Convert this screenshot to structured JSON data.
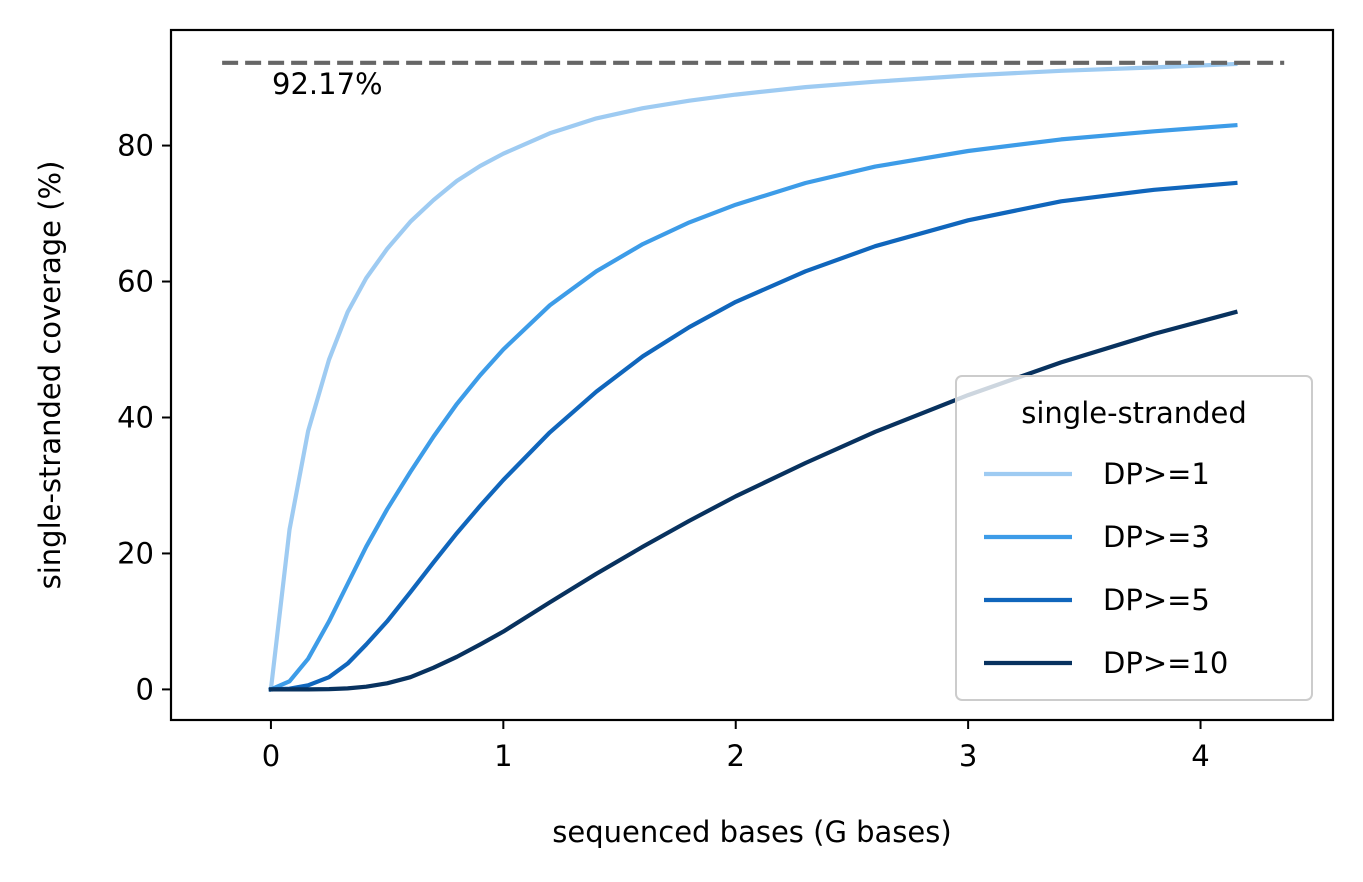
{
  "chart_data": {
    "type": "line",
    "xlabel": "sequenced bases (G bases)",
    "ylabel": "single-stranded coverage (%)",
    "xlim": [
      -0.43,
      4.57
    ],
    "ylim": [
      -4.5,
      97.0
    ],
    "xticks": [
      0,
      1,
      2,
      3,
      4
    ],
    "xtick_labels": [
      "0",
      "1",
      "2",
      "3",
      "4"
    ],
    "yticks": [
      0,
      20,
      40,
      60,
      80
    ],
    "ytick_labels": [
      "0",
      "20",
      "40",
      "60",
      "80"
    ],
    "grid": false,
    "legend": {
      "title": "single-stranded",
      "placement": "lower-right"
    },
    "reference_line": {
      "y": 92.17,
      "style": "dashed",
      "color": "#666666",
      "label": "92.17%"
    },
    "series": [
      {
        "name": "DP>=1",
        "color": "#9ecbf2",
        "x": [
          0,
          0.08,
          0.16,
          0.25,
          0.33,
          0.41,
          0.5,
          0.6,
          0.7,
          0.8,
          0.9,
          1.0,
          1.2,
          1.4,
          1.6,
          1.8,
          2.0,
          2.3,
          2.6,
          3.0,
          3.4,
          3.8,
          4.15
        ],
        "y": [
          0,
          23.5,
          38,
          48.5,
          55.5,
          60.5,
          64.8,
          68.8,
          72,
          74.8,
          77,
          78.8,
          81.8,
          84,
          85.5,
          86.6,
          87.5,
          88.6,
          89.4,
          90.3,
          91,
          91.5,
          92
        ]
      },
      {
        "name": "DP>=3",
        "color": "#3d9ce8",
        "x": [
          0,
          0.08,
          0.16,
          0.25,
          0.33,
          0.41,
          0.5,
          0.6,
          0.7,
          0.8,
          0.9,
          1.0,
          1.2,
          1.4,
          1.6,
          1.8,
          2.0,
          2.3,
          2.6,
          3.0,
          3.4,
          3.8,
          4.15
        ],
        "y": [
          0,
          1.2,
          4.5,
          10,
          15.5,
          21,
          26.5,
          32,
          37.2,
          42,
          46.2,
          50,
          56.5,
          61.5,
          65.5,
          68.7,
          71.3,
          74.5,
          76.9,
          79.2,
          80.9,
          82.1,
          83
        ]
      },
      {
        "name": "DP>=5",
        "color": "#1066bc",
        "x": [
          0,
          0.08,
          0.16,
          0.25,
          0.33,
          0.41,
          0.5,
          0.6,
          0.7,
          0.8,
          0.9,
          1.0,
          1.2,
          1.4,
          1.6,
          1.8,
          2.0,
          2.3,
          2.6,
          3.0,
          3.4,
          3.8,
          4.15
        ],
        "y": [
          0,
          0.1,
          0.6,
          1.8,
          3.8,
          6.6,
          10,
          14.3,
          18.7,
          23,
          27,
          30.8,
          37.8,
          43.8,
          49,
          53.3,
          57,
          61.5,
          65.2,
          69,
          71.8,
          73.5,
          74.5
        ]
      },
      {
        "name": "DP>=10",
        "color": "#08325f",
        "x": [
          0,
          0.08,
          0.16,
          0.25,
          0.33,
          0.41,
          0.5,
          0.6,
          0.7,
          0.8,
          0.9,
          1.0,
          1.2,
          1.4,
          1.6,
          1.8,
          2.0,
          2.3,
          2.6,
          3.0,
          3.4,
          3.8,
          4.15
        ],
        "y": [
          0,
          0,
          0,
          0.05,
          0.15,
          0.4,
          0.9,
          1.8,
          3.2,
          4.8,
          6.6,
          8.5,
          12.8,
          17,
          21,
          24.8,
          28.4,
          33.3,
          37.9,
          43.3,
          48.1,
          52.3,
          55.5
        ]
      }
    ]
  }
}
